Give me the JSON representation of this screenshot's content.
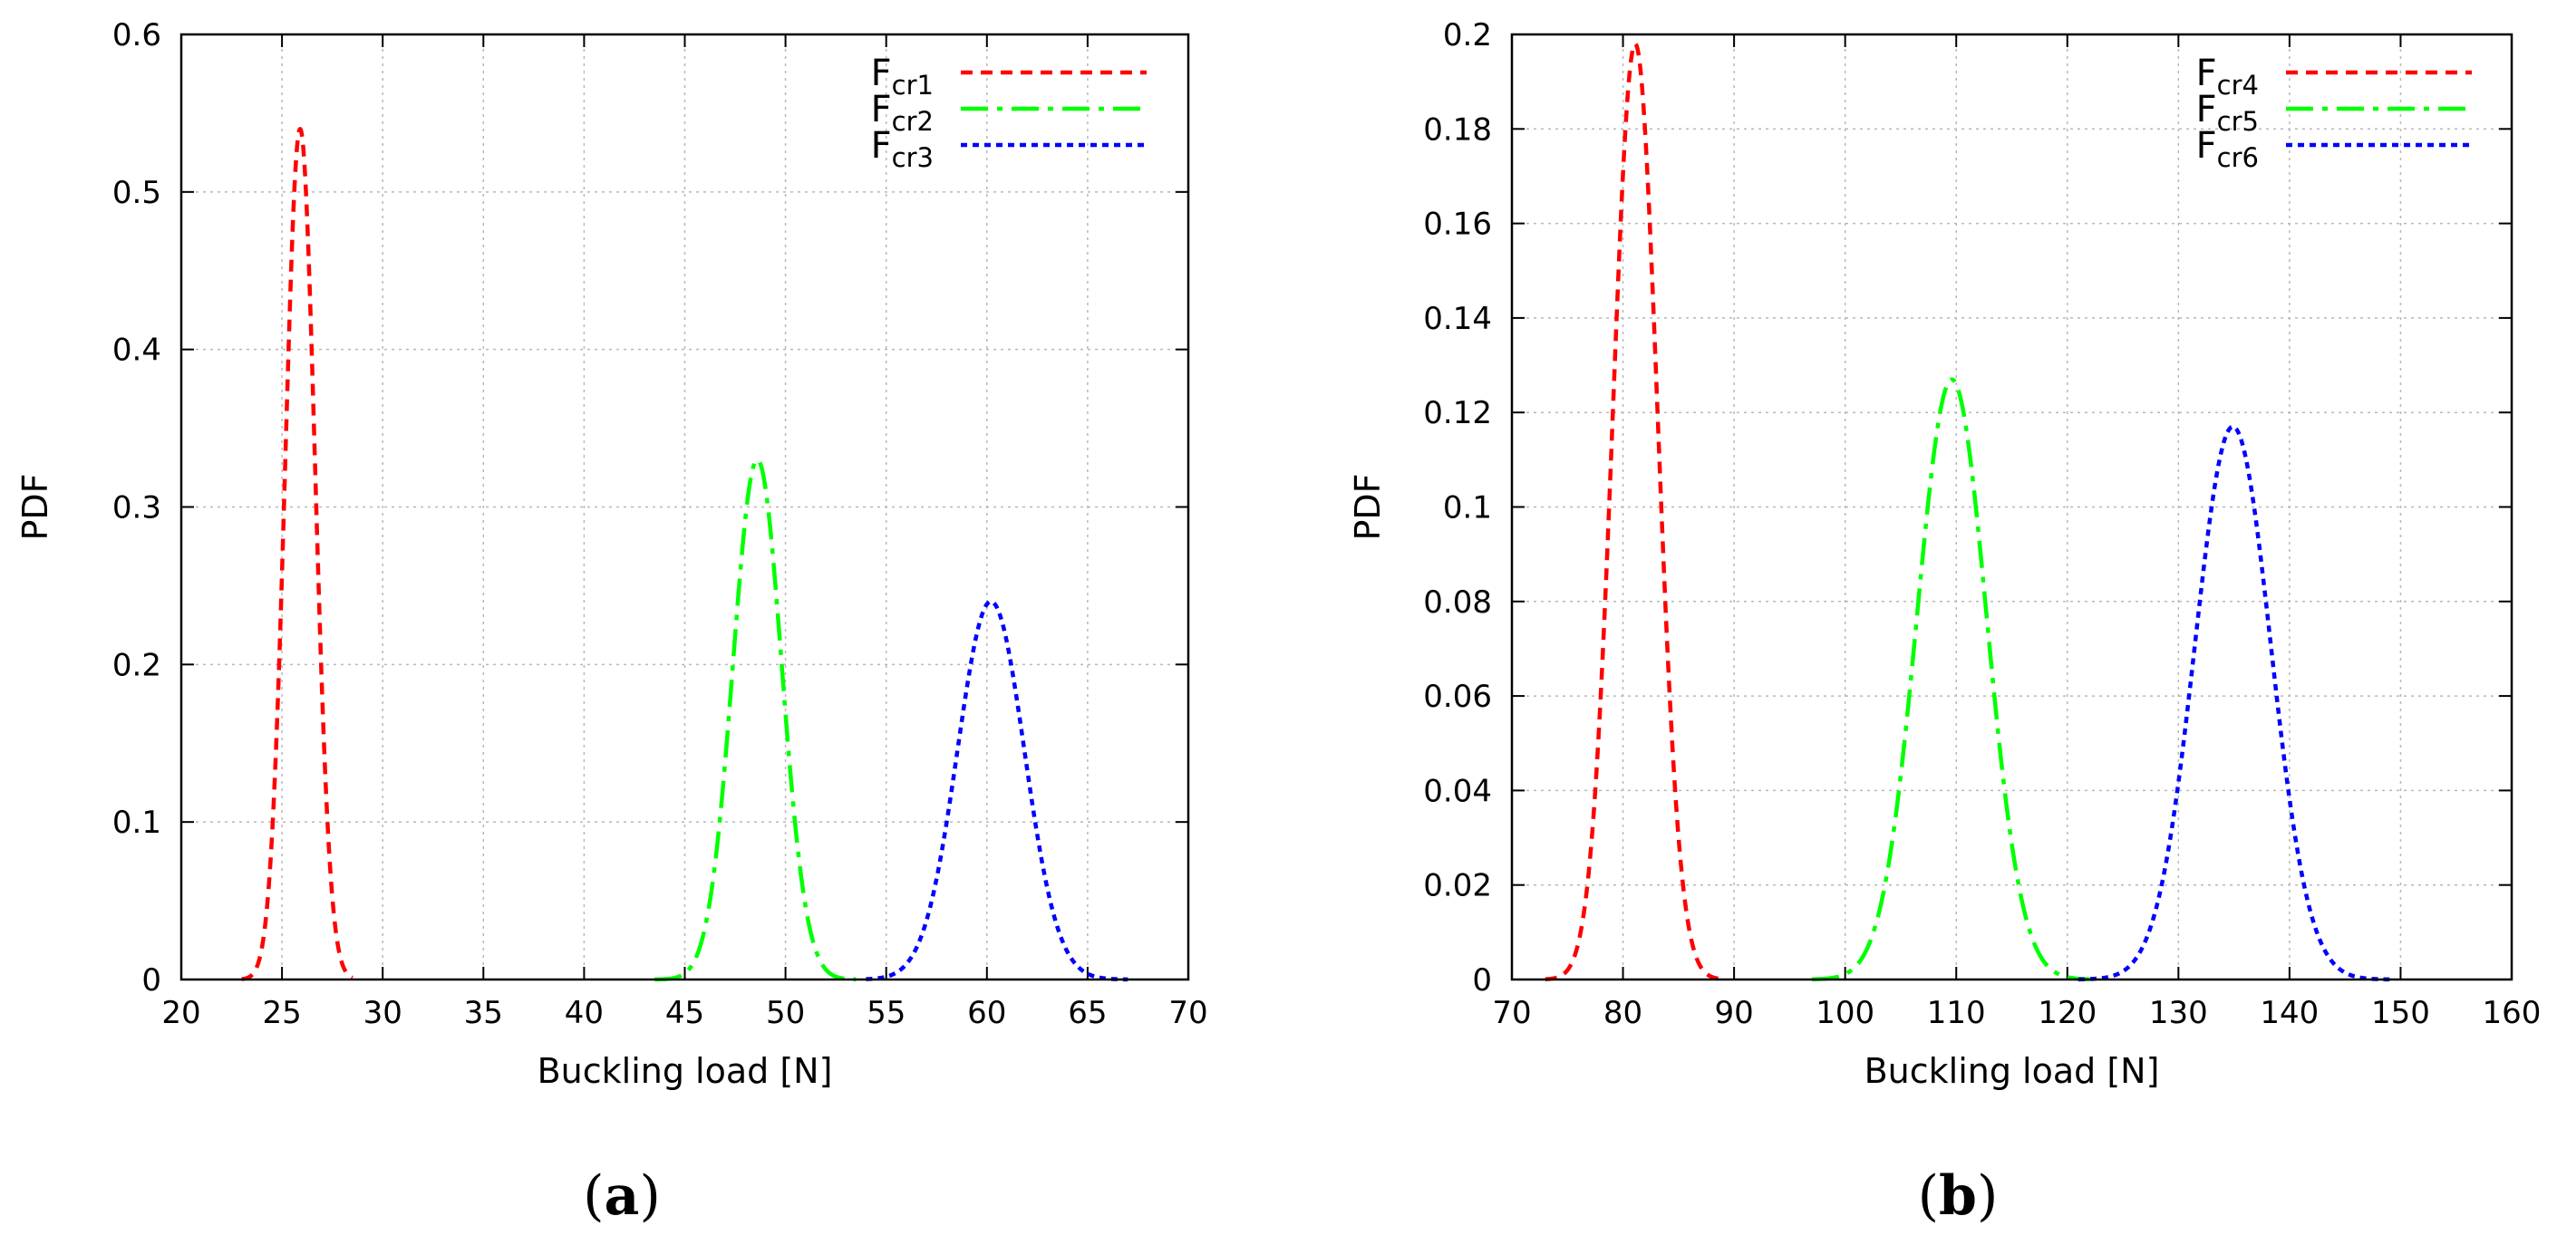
{
  "chart_data": [
    {
      "id": "a",
      "type": "line",
      "caption_letter": "a",
      "xlabel": "Buckling load [N]",
      "ylabel": "PDF",
      "xlim": [
        20,
        70
      ],
      "ylim": [
        0,
        0.6
      ],
      "xticks": [
        20,
        25,
        30,
        35,
        40,
        45,
        50,
        55,
        60,
        65,
        70
      ],
      "yticks": [
        0,
        0.1,
        0.2,
        0.3,
        0.4,
        0.5,
        0.6
      ],
      "grid": true,
      "legend_position": "top-right",
      "series": [
        {
          "name_main": "F",
          "name_sub": "cr1",
          "color": "#ff0000",
          "dash": "short-dash",
          "mean": 25.9,
          "sd": 0.74,
          "peak": 0.54,
          "x_from": 23.0,
          "x_to": 28.5
        },
        {
          "name_main": "F",
          "name_sub": "cr2",
          "color": "#00ff00",
          "dash": "dash-dot",
          "mean": 48.6,
          "sd": 1.21,
          "peak": 0.33,
          "x_from": 43.5,
          "x_to": 53.5
        },
        {
          "name_main": "F",
          "name_sub": "cr3",
          "color": "#0000ff",
          "dash": "dotted",
          "mean": 60.2,
          "sd": 1.66,
          "peak": 0.24,
          "x_from": 54.0,
          "x_to": 67.0
        }
      ]
    },
    {
      "id": "b",
      "type": "line",
      "caption_letter": "b",
      "xlabel": "Buckling load [N]",
      "ylabel": "PDF",
      "xlim": [
        70,
        160
      ],
      "ylim": [
        0,
        0.2
      ],
      "xticks": [
        70,
        80,
        90,
        100,
        110,
        120,
        130,
        140,
        150,
        160
      ],
      "yticks": [
        0,
        0.02,
        0.04,
        0.06,
        0.08,
        0.1,
        0.12,
        0.14,
        0.16,
        0.18,
        0.2
      ],
      "grid": true,
      "legend_position": "top-right",
      "series": [
        {
          "name_main": "F",
          "name_sub": "cr4",
          "color": "#ff0000",
          "dash": "short-dash",
          "mean": 81.1,
          "sd": 2.01,
          "peak": 0.198,
          "x_from": 73.0,
          "x_to": 89.0
        },
        {
          "name_main": "F",
          "name_sub": "cr5",
          "color": "#00ff00",
          "dash": "dash-dot",
          "mean": 109.6,
          "sd": 3.13,
          "peak": 0.127,
          "x_from": 97.0,
          "x_to": 122.0
        },
        {
          "name_main": "F",
          "name_sub": "cr6",
          "color": "#0000ff",
          "dash": "dotted",
          "mean": 134.9,
          "sd": 3.41,
          "peak": 0.117,
          "x_from": 121.0,
          "x_to": 149.0
        }
      ]
    }
  ]
}
